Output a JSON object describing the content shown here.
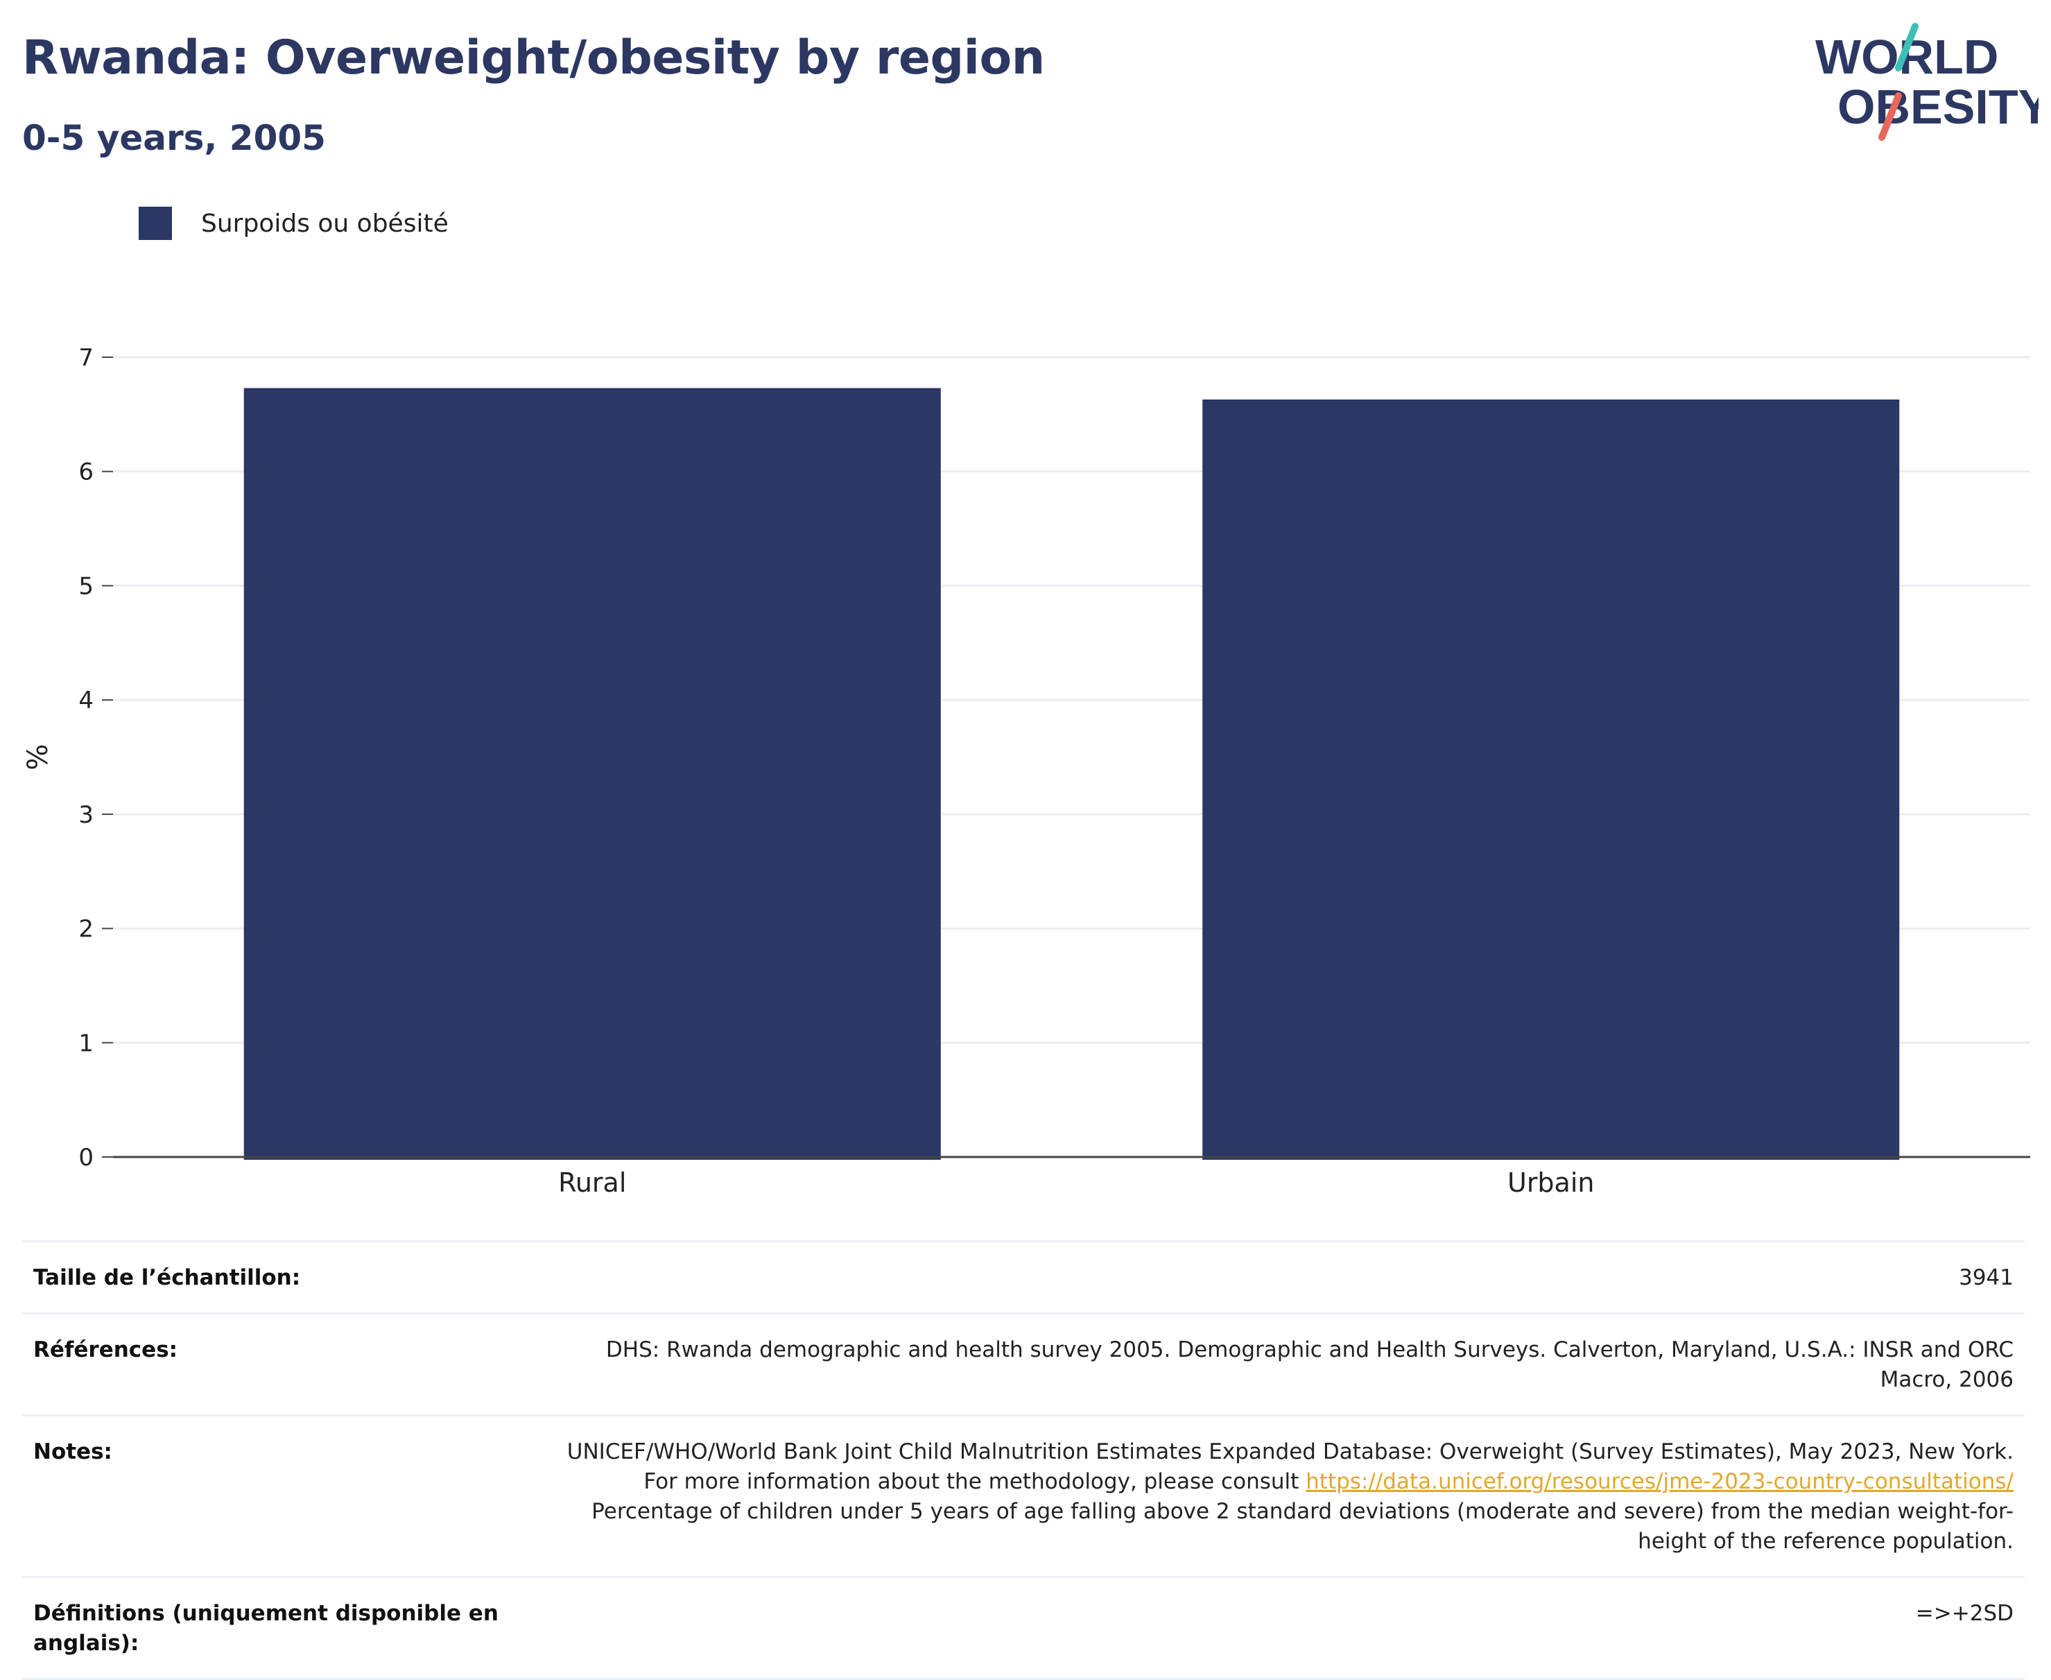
{
  "header": {
    "title": "Rwanda: Overweight/obesity by region",
    "subtitle": "0-5 years, 2005"
  },
  "logo": {
    "text_line1": "WORLD",
    "text_line2": "OBESITY",
    "colors": {
      "text": "#2c3862",
      "slash_top": "#3dbfb8",
      "slash_bottom": "#e8685a"
    }
  },
  "chart_data": {
    "type": "bar",
    "categories": [
      "Rural",
      "Urbain"
    ],
    "series": [
      {
        "name": "Surpoids ou obésité",
        "values": [
          6.73,
          6.63
        ],
        "color": "#2b3765"
      }
    ],
    "ylabel": "%",
    "xlabel": "",
    "ylim": [
      0,
      7
    ],
    "yticks": [
      0,
      1,
      2,
      3,
      4,
      5,
      6,
      7
    ],
    "grid": true,
    "legend_position": "top-left"
  },
  "info": {
    "sample": {
      "label": "Taille de l’échantillon:",
      "value": "3941"
    },
    "references": {
      "label": "Références:",
      "value": "DHS: Rwanda demographic and health survey 2005. Demographic and Health Surveys. Calverton, Maryland, U.S.A.: INSR and ORC Macro, 2006"
    },
    "notes": {
      "label": "Notes:",
      "text_before": "UNICEF/WHO/World Bank Joint Child Malnutrition Estimates Expanded Database: Overweight (Survey Estimates), May 2023, New York. For more information about the methodology, please consult",
      "link": "https://data.unicef.org/resources/jme-2023-country-consultations/",
      "text_after": "Percentage of children under 5 years of age falling above 2 standard deviations (moderate and severe) from the median weight-for-height of the reference population."
    },
    "definitions": {
      "label": "Définitions (uniquement disponible en anglais):",
      "value": "=>+2SD"
    }
  }
}
